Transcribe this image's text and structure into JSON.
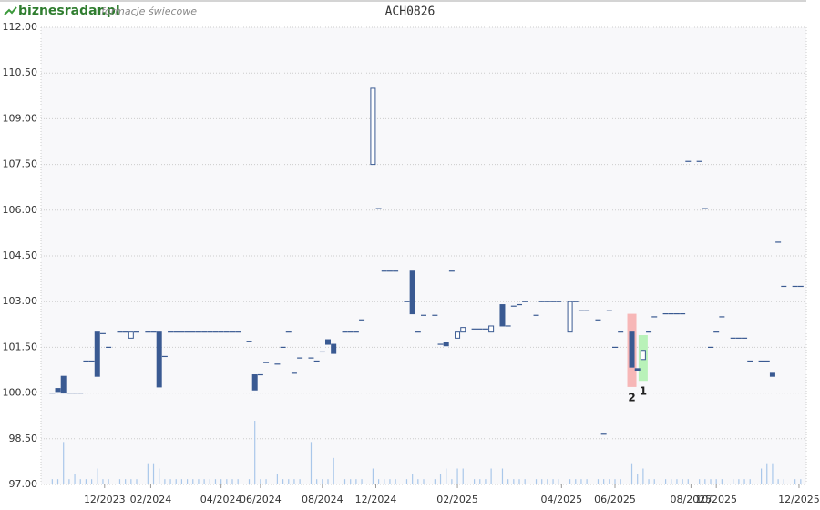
{
  "header": {
    "logo": "biznesradar.pl",
    "subtitle": "formacje świecowe"
  },
  "chart_data": {
    "type": "candlestick",
    "title": "ACH0826",
    "x": [
      2,
      3,
      4,
      5,
      6,
      7,
      8,
      9,
      10,
      11,
      12,
      14,
      15,
      16,
      17,
      19,
      20,
      21,
      22,
      23,
      24,
      25,
      26,
      27,
      28,
      29,
      30,
      31,
      32,
      33,
      34,
      35,
      37,
      38,
      39,
      40,
      42,
      43,
      44,
      45,
      46,
      48,
      49,
      50,
      51,
      52,
      54,
      55,
      56,
      57,
      59,
      60,
      61,
      62,
      63,
      65,
      66,
      67,
      68,
      70,
      71,
      72,
      73,
      74,
      75,
      77,
      78,
      79,
      80,
      82,
      83,
      84,
      85,
      86,
      88,
      89,
      90,
      91,
      92,
      94,
      95,
      96,
      97,
      99,
      100,
      101,
      102,
      103,
      105,
      106,
      107,
      108,
      109,
      111,
      112,
      113,
      114,
      115,
      117,
      118,
      119,
      120,
      121,
      123,
      124,
      125,
      126,
      128,
      129,
      130,
      131,
      132,
      134,
      135
    ],
    "open": [
      100,
      100.15,
      100.55,
      100,
      100,
      100,
      101.05,
      101.05,
      102,
      101.95,
      101.5,
      102,
      102,
      101.8,
      102,
      102,
      102,
      102,
      101.2,
      102,
      102,
      102,
      102,
      102,
      102,
      102,
      102,
      102,
      102,
      102,
      102,
      102,
      101.7,
      100.6,
      100.6,
      101,
      100.95,
      101.5,
      102,
      100.65,
      101.15,
      101.15,
      101.05,
      101.35,
      101.75,
      101.6,
      102,
      102,
      102,
      102.4,
      107.5,
      106.05,
      104,
      104,
      104,
      103,
      104,
      102,
      102.55,
      102.55,
      101.6,
      101.65,
      104,
      101.8,
      102,
      102.1,
      102.1,
      102.1,
      102,
      102.9,
      102.2,
      102.85,
      102.9,
      103,
      102.55,
      103,
      103,
      103,
      103,
      102,
      103,
      102.7,
      102.7,
      102.4,
      98.65,
      102.7,
      101.5,
      102,
      102,
      100.8,
      101.1,
      102,
      102.5,
      102.6,
      102.6,
      102.6,
      102.6,
      107.6,
      107.6,
      106.05,
      101.5,
      102,
      102.5,
      101.8,
      101.8,
      101.8,
      101.05,
      101.05,
      101.05,
      100.65,
      104.95,
      103.5,
      103.5,
      103.5
    ],
    "close": [
      100,
      100.05,
      100,
      100,
      100,
      100,
      101.05,
      101.05,
      100.55,
      101.95,
      101.5,
      102,
      102,
      102,
      102,
      102,
      102,
      100.2,
      101.2,
      102,
      102,
      102,
      102,
      102,
      102,
      102,
      102,
      102,
      102,
      102,
      102,
      102,
      101.7,
      100.1,
      100.6,
      101,
      100.95,
      101.5,
      102,
      100.65,
      101.15,
      101.15,
      101.05,
      101.35,
      101.6,
      101.3,
      102,
      102,
      102,
      102.4,
      110,
      106.05,
      104,
      104,
      104,
      103,
      102.6,
      102,
      102.55,
      102.55,
      101.6,
      101.55,
      104,
      102,
      102.15,
      102.1,
      102.1,
      102.1,
      102.2,
      102.2,
      102.2,
      102.85,
      102.9,
      103,
      102.55,
      103,
      103,
      103,
      103,
      103,
      103,
      102.7,
      102.7,
      102.4,
      98.65,
      102.7,
      101.5,
      102,
      100.85,
      100.75,
      101.4,
      102,
      102.5,
      102.6,
      102.6,
      102.6,
      102.6,
      107.6,
      107.6,
      106.05,
      101.5,
      102,
      102.5,
      101.8,
      101.8,
      101.8,
      101.05,
      101.05,
      101.05,
      100.55,
      104.95,
      103.5,
      103.5,
      103.5
    ],
    "volume": [
      1,
      1,
      8,
      1,
      2,
      1,
      1,
      1,
      3,
      1,
      1,
      1,
      1,
      1,
      1,
      4,
      4,
      3,
      1,
      1,
      1,
      1,
      1,
      1,
      1,
      1,
      1,
      1,
      1,
      1,
      1,
      1,
      1,
      12,
      1,
      1,
      2,
      1,
      1,
      1,
      1,
      8,
      1,
      1,
      1,
      5,
      1,
      1,
      1,
      1,
      3,
      1,
      1,
      1,
      1,
      1,
      2,
      1,
      1,
      1,
      2,
      3,
      1,
      3,
      3,
      1,
      1,
      1,
      3,
      3,
      1,
      1,
      1,
      1,
      1,
      1,
      1,
      1,
      1,
      1,
      1,
      1,
      1,
      1,
      1,
      1,
      1,
      1,
      4,
      2,
      3,
      1,
      1,
      1,
      1,
      1,
      1,
      1,
      1,
      1,
      1,
      1,
      1,
      1,
      1,
      1,
      1,
      3,
      4,
      4,
      1,
      1,
      1,
      1
    ],
    "patterns": [
      {
        "label": "2",
        "x": 105,
        "low": 100.2,
        "high": 102.6,
        "color": "#f7b7b7"
      },
      {
        "label": "1",
        "x": 107,
        "low": 100.4,
        "high": 101.9,
        "color": "#b9f2b9"
      }
    ],
    "color": "#3a5a92",
    "volume_color": "#a9c7ea",
    "xlim": [
      0,
      136
    ],
    "xticks": [
      {
        "value": 11.3,
        "label": "12/2023"
      },
      {
        "value": 19.5,
        "label": "02/2024"
      },
      {
        "value": 32,
        "label": "04/2024"
      },
      {
        "value": 39,
        "label": "06/2024"
      },
      {
        "value": 50,
        "label": "08/2024"
      },
      {
        "value": 59.5,
        "label": "12/2024"
      },
      {
        "value": 74,
        "label": "02/2025"
      },
      {
        "value": 92.5,
        "label": "04/2025"
      },
      {
        "value": 102,
        "label": "06/2025"
      },
      {
        "value": 115.5,
        "label": "08/2025"
      },
      {
        "value": 120,
        "label": "10/2025"
      },
      {
        "value": 134.7,
        "label": "12/2025"
      }
    ],
    "ylim": [
      97,
      112
    ],
    "yticks": [
      {
        "value": 97,
        "label": "97.00"
      },
      {
        "value": 98.5,
        "label": "98.50"
      },
      {
        "value": 100,
        "label": "100.00"
      },
      {
        "value": 101.5,
        "label": "101.50"
      },
      {
        "value": 103,
        "label": "103.00"
      },
      {
        "value": 104.5,
        "label": "104.50"
      },
      {
        "value": 106,
        "label": "106.00"
      },
      {
        "value": 107.5,
        "label": "107.50"
      },
      {
        "value": 109,
        "label": "109.00"
      },
      {
        "value": 110.5,
        "label": "110.50"
      },
      {
        "value": 112,
        "label": "112.00"
      }
    ],
    "grid": true
  }
}
